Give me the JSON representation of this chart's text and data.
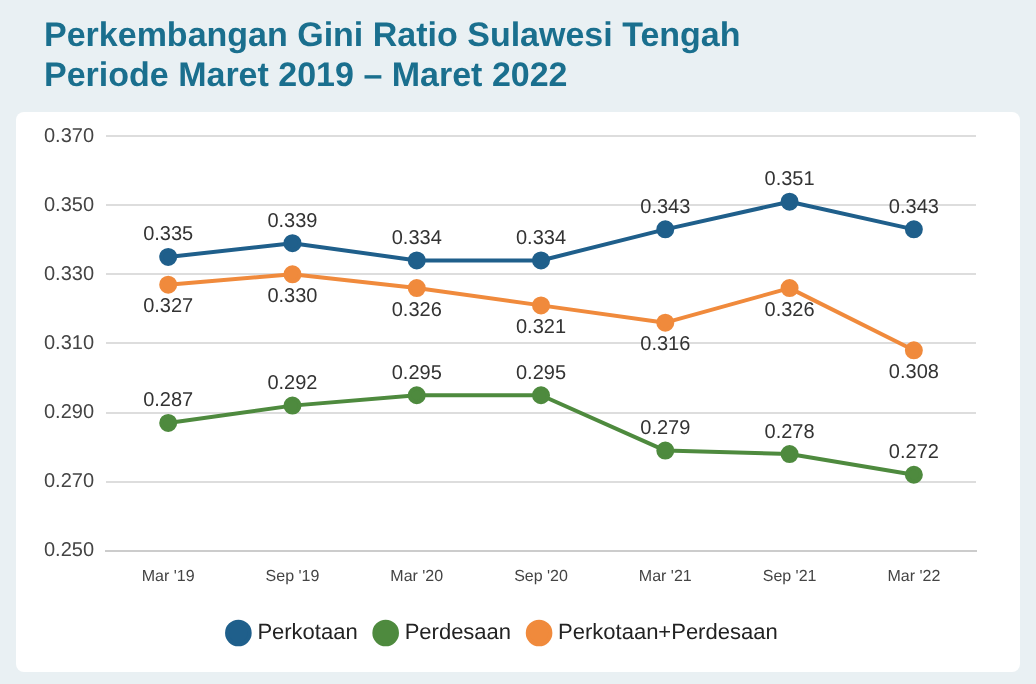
{
  "chart_data": {
    "type": "line",
    "title": "Perkembangan Gini Ratio Sulawesi Tengah",
    "subtitle": "Periode Maret 2019 – Maret 2022",
    "categories": [
      "Mar '19",
      "Sep '19",
      "Mar '20",
      "Sep '20",
      "Mar '21",
      "Sep '21",
      "Mar '22"
    ],
    "series": [
      {
        "name": "Perkotaan",
        "color": "#1f5f8b",
        "values": [
          0.335,
          0.339,
          0.334,
          0.334,
          0.343,
          0.351,
          0.343
        ],
        "value_labels": [
          "0.335",
          "0.339",
          "0.334",
          "0.334",
          "0.343",
          "0.351",
          "0.343"
        ]
      },
      {
        "name": "Perdesaan",
        "color": "#4e8a3e",
        "values": [
          0.287,
          0.292,
          0.295,
          0.295,
          0.279,
          0.278,
          0.272
        ],
        "value_labels": [
          "0.287",
          "0.292",
          "0.295",
          "0.295",
          "0.279",
          "0.278",
          "0.272"
        ]
      },
      {
        "name": "Perkotaan+Perdesaan",
        "color": "#f08a3c",
        "values": [
          0.327,
          0.33,
          0.326,
          0.321,
          0.316,
          0.326,
          0.308
        ],
        "value_labels": [
          "0.327",
          "0.330",
          "0.326",
          "0.321",
          "0.316",
          "0.326",
          "0.308"
        ]
      }
    ],
    "ylim": [
      0.25,
      0.37
    ],
    "yticks": [
      {
        "value": 0.25,
        "label": "0.250"
      },
      {
        "value": 0.27,
        "label": "0.270"
      },
      {
        "value": 0.29,
        "label": "0.290"
      },
      {
        "value": 0.31,
        "label": "0.310"
      },
      {
        "value": 0.33,
        "label": "0.330"
      },
      {
        "value": 0.35,
        "label": "0.350"
      },
      {
        "value": 0.37,
        "label": "0.370"
      }
    ],
    "grid": "y",
    "legend": "bottom",
    "marker": "circle",
    "line_style": "solid"
  }
}
